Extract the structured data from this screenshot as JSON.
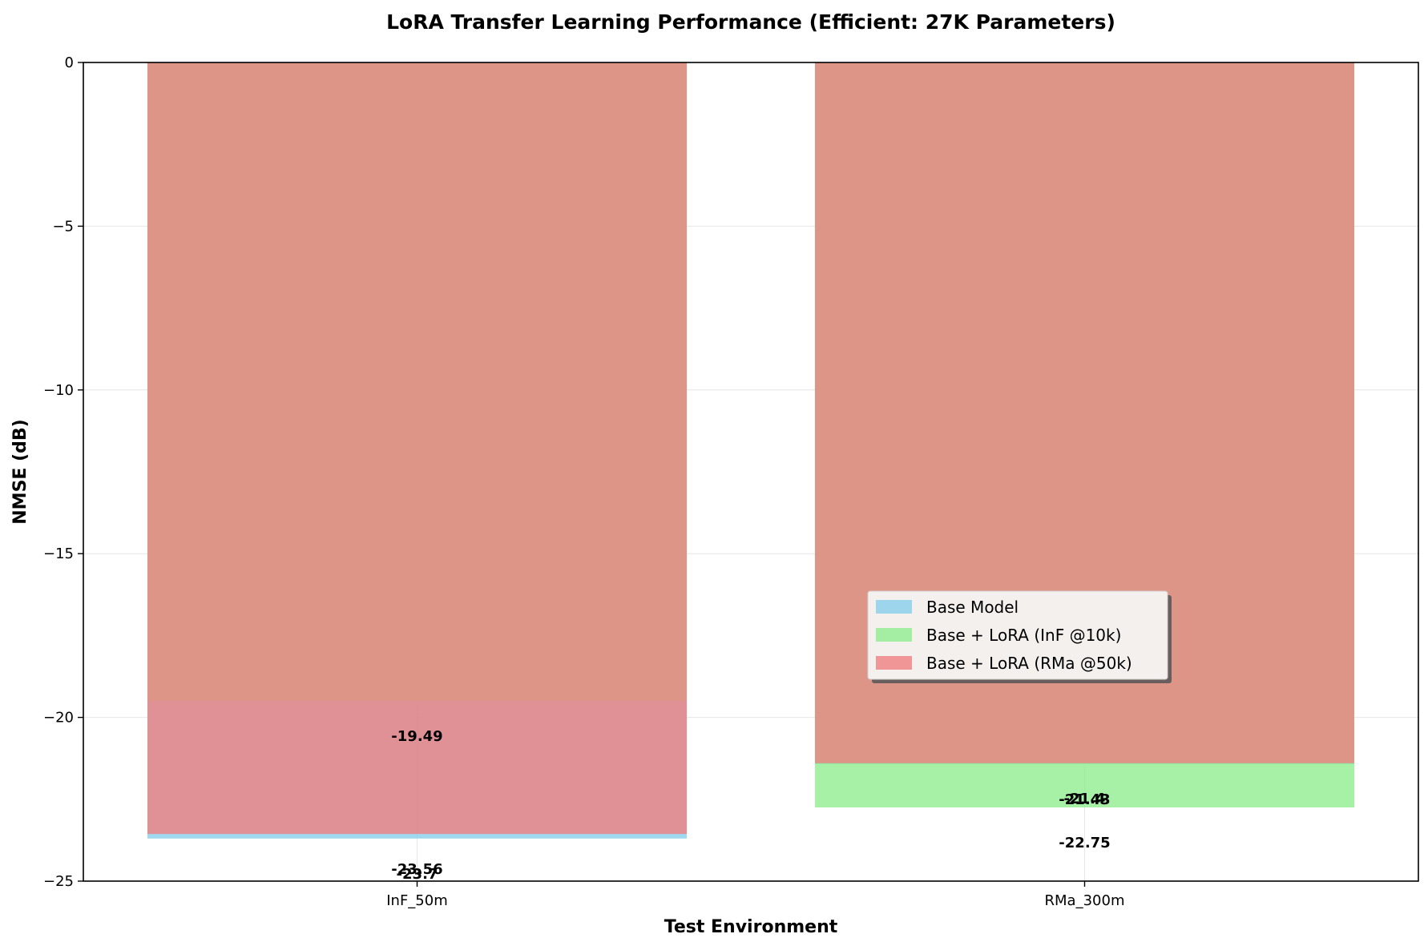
{
  "chart_data": {
    "type": "bar",
    "title": "LoRA Transfer Learning Performance (Efficient: 27K Parameters)",
    "xlabel": "Test Environment",
    "ylabel": "NMSE (dB)",
    "categories": [
      "InF_50m",
      "RMa_300m"
    ],
    "ylim": [
      -25,
      0
    ],
    "yticks": [
      0,
      -5,
      -10,
      -15,
      -20,
      -25
    ],
    "ytick_labels": [
      "0",
      "−5",
      "−10",
      "−15",
      "−20",
      "−25"
    ],
    "grid": true,
    "legend_position": "center-right",
    "series": [
      {
        "name": "Base Model",
        "values": [
          -23.7,
          -21.43
        ],
        "labels": [
          "-23.7",
          "-21.43"
        ],
        "color": "#87CEEB"
      },
      {
        "name": "Base + LoRA (InF @10k)",
        "values": [
          -19.49,
          -22.75
        ],
        "labels": [
          "-19.49",
          "-22.75"
        ],
        "color": "#90EE90"
      },
      {
        "name": "Base + LoRA (RMa @50k)",
        "values": [
          -23.56,
          -21.4
        ],
        "labels": [
          "-23.56",
          "-21.4"
        ],
        "color": "#F08080"
      }
    ]
  }
}
